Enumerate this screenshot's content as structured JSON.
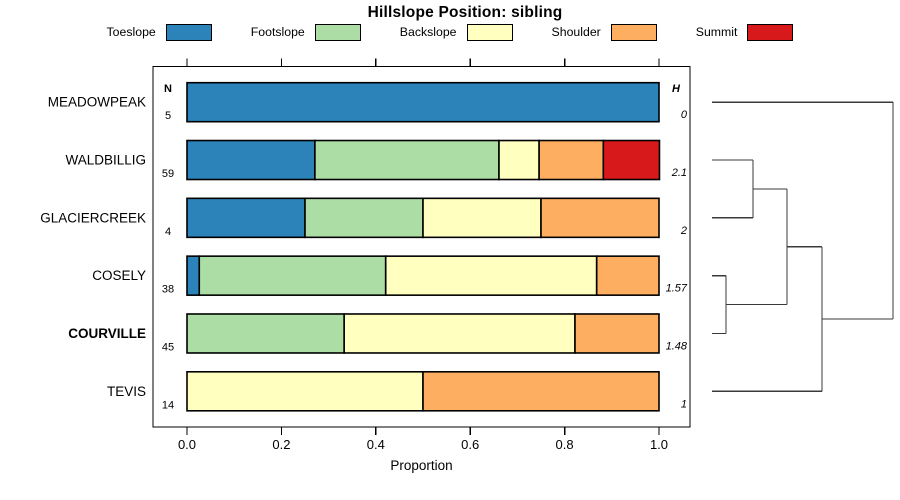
{
  "chart_data": {
    "type": "bar",
    "stacked": true,
    "orientation": "horizontal",
    "title": "Hillslope Position: sibling",
    "xlabel": "Proportion",
    "xlim": [
      0,
      1
    ],
    "x_ticks": [
      "0.0",
      "0.2",
      "0.4",
      "0.6",
      "0.8",
      "1.0"
    ],
    "x_tick_values": [
      0,
      0.2,
      0.4,
      0.6,
      0.8,
      1.0
    ],
    "grid": false,
    "legend_position": "top",
    "categories": [
      "Toeslope",
      "Footslope",
      "Backslope",
      "Shoulder",
      "Summit"
    ],
    "series_colors": [
      "#2B83BA",
      "#ABDDA4",
      "#FFFFBF",
      "#FDAE61",
      "#D7191C"
    ],
    "n_header": "N",
    "h_header": "H",
    "rows": [
      {
        "name": "MEADOWPEAK",
        "n": 5,
        "h": "0",
        "emphasis": false,
        "proportions": [
          1,
          0,
          0,
          0,
          0
        ]
      },
      {
        "name": "WALDBILLIG",
        "n": 59,
        "h": "2.1",
        "emphasis": false,
        "proportions": [
          0.271,
          0.39,
          0.085,
          0.136,
          0.119
        ]
      },
      {
        "name": "GLACIERCREEK",
        "n": 4,
        "h": "2",
        "emphasis": false,
        "proportions": [
          0.25,
          0.25,
          0.25,
          0.25,
          0
        ]
      },
      {
        "name": "COSELY",
        "n": 38,
        "h": "1.57",
        "emphasis": false,
        "proportions": [
          0.026,
          0.395,
          0.447,
          0.132,
          0
        ]
      },
      {
        "name": "COURVILLE",
        "n": 45,
        "h": "1.48",
        "emphasis": true,
        "proportions": [
          0,
          0.333,
          0.489,
          0.178,
          0
        ]
      },
      {
        "name": "TEVIS",
        "n": 14,
        "h": "1",
        "emphasis": false,
        "proportions": [
          0,
          0,
          0.5,
          0.5,
          0
        ]
      }
    ],
    "dendrogram": {
      "leaf_start_x": 712,
      "merges": [
        {
          "id": "m1",
          "children": [
            "WALDBILLIG",
            "GLACIERCREEK"
          ],
          "x": 753
        },
        {
          "id": "m2",
          "children": [
            "COSELY",
            "COURVILLE"
          ],
          "x": 726
        },
        {
          "id": "m3",
          "children": [
            "m1",
            "m2"
          ],
          "x": 787
        },
        {
          "id": "m4",
          "children": [
            "m3",
            "TEVIS"
          ],
          "x": 822
        },
        {
          "id": "m5",
          "children": [
            "MEADOWPEAK",
            "m4"
          ],
          "x": 893
        }
      ]
    }
  }
}
